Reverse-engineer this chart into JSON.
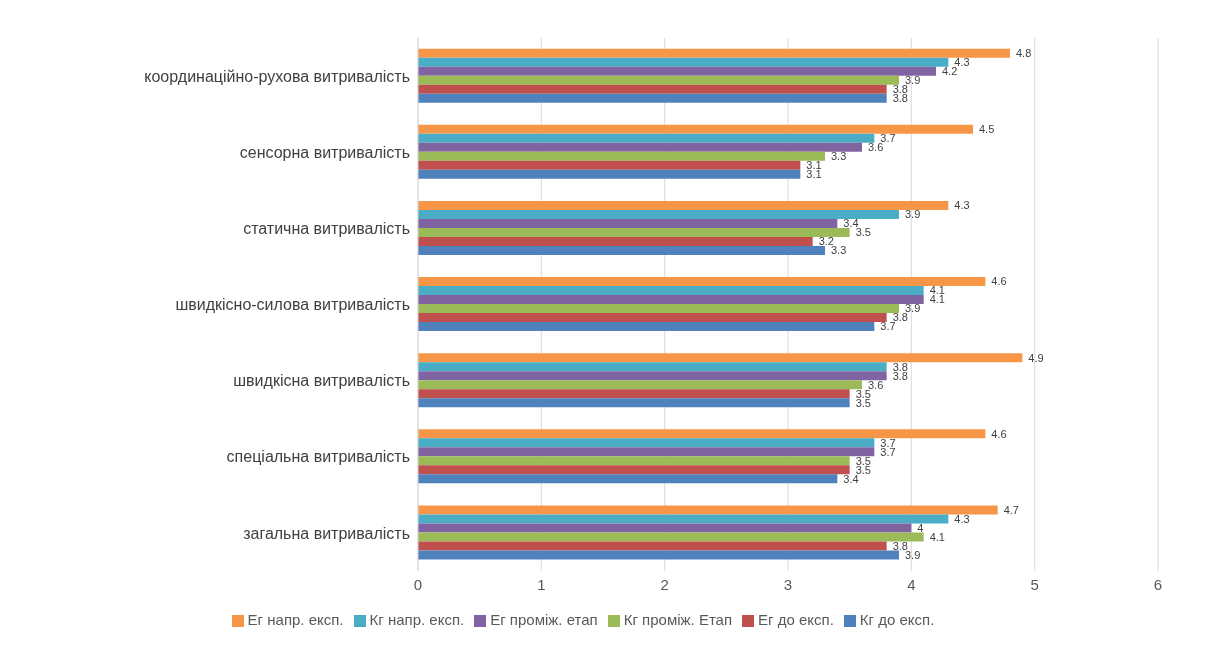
{
  "chart_data": {
    "type": "bar",
    "orientation": "horizontal",
    "categories": [
      "координаційно-рухова витривалість",
      "сенсорна витривалість",
      "статична витривалість",
      "швидкісно-силова витривалість",
      "швидкісна витривалість",
      "спеціальна витривалість",
      "загальна витривалість"
    ],
    "series": [
      {
        "name": "Ег напр. експ.",
        "color": "#f79646",
        "values": [
          4.8,
          4.5,
          4.3,
          4.6,
          4.9,
          4.6,
          4.7
        ]
      },
      {
        "name": "Кг напр. експ.",
        "color": "#4bacc6",
        "values": [
          4.3,
          3.7,
          3.9,
          4.1,
          3.8,
          3.7,
          4.3
        ]
      },
      {
        "name": "Ег проміж. етап",
        "color": "#8064a2",
        "values": [
          4.2,
          3.6,
          3.4,
          4.1,
          3.8,
          3.7,
          4
        ]
      },
      {
        "name": "Кг проміж. Етап",
        "color": "#9bbb59",
        "values": [
          3.9,
          3.3,
          3.5,
          3.9,
          3.6,
          3.5,
          4.1
        ]
      },
      {
        "name": "Ег до експ.",
        "color": "#c0504d",
        "values": [
          3.8,
          3.1,
          3.2,
          3.8,
          3.5,
          3.5,
          3.8
        ]
      },
      {
        "name": "Кг до експ.",
        "color": "#4f81bd",
        "values": [
          3.8,
          3.1,
          3.3,
          3.7,
          3.5,
          3.4,
          3.9
        ]
      }
    ],
    "xlim": [
      0,
      6
    ],
    "xticks": [
      0,
      1,
      2,
      3,
      4,
      5,
      6
    ],
    "grid": "x",
    "legend": "bottom",
    "data_labels": true
  }
}
